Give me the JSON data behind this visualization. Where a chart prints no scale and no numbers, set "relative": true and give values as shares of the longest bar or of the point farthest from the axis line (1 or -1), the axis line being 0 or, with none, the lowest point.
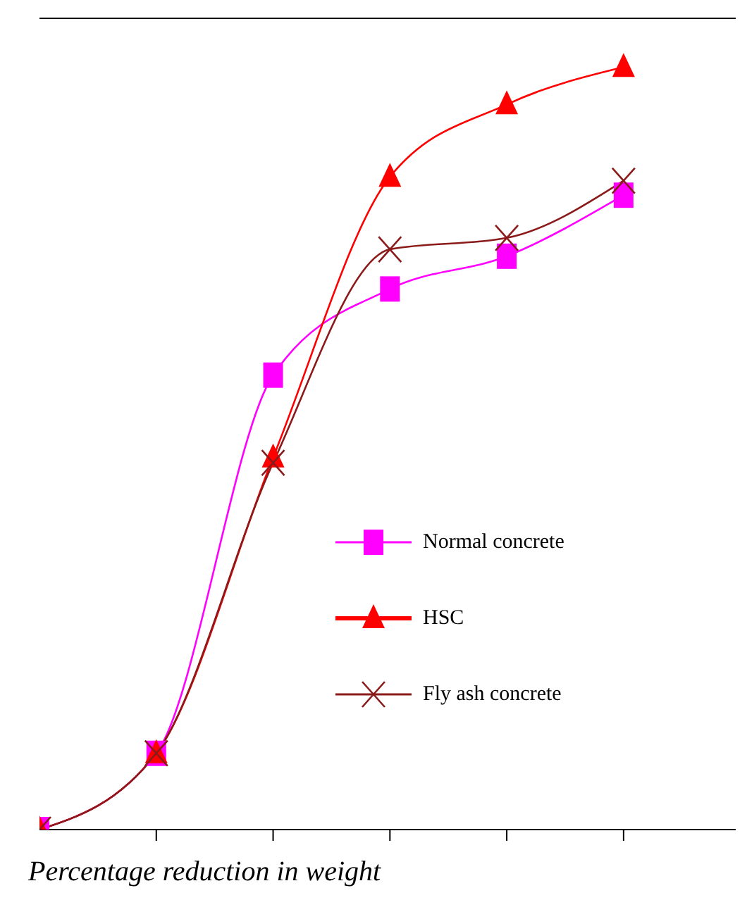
{
  "chart_data": {
    "type": "line",
    "relative": true,
    "xlabel": "Percentage reduction in weight",
    "categories": [
      null,
      null,
      null,
      null,
      null,
      null
    ],
    "legend": "center",
    "line_style": "solid",
    "series": [
      {
        "name": "Normal concrete",
        "color": "#ff00ff",
        "marker": "square",
        "values": [
          0,
          0.1,
          0.596,
          0.709,
          0.752,
          0.832
        ]
      },
      {
        "name": "HSC",
        "color": "#ff0000",
        "marker": "triangle",
        "values": [
          0,
          0.1,
          0.488,
          0.856,
          0.951,
          1
        ]
      },
      {
        "name": "Fly ash concrete",
        "color": "#8b1a1a",
        "marker": "cross",
        "values": [
          0,
          0.1,
          0.481,
          0.761,
          0.776,
          0.851
        ]
      }
    ]
  }
}
